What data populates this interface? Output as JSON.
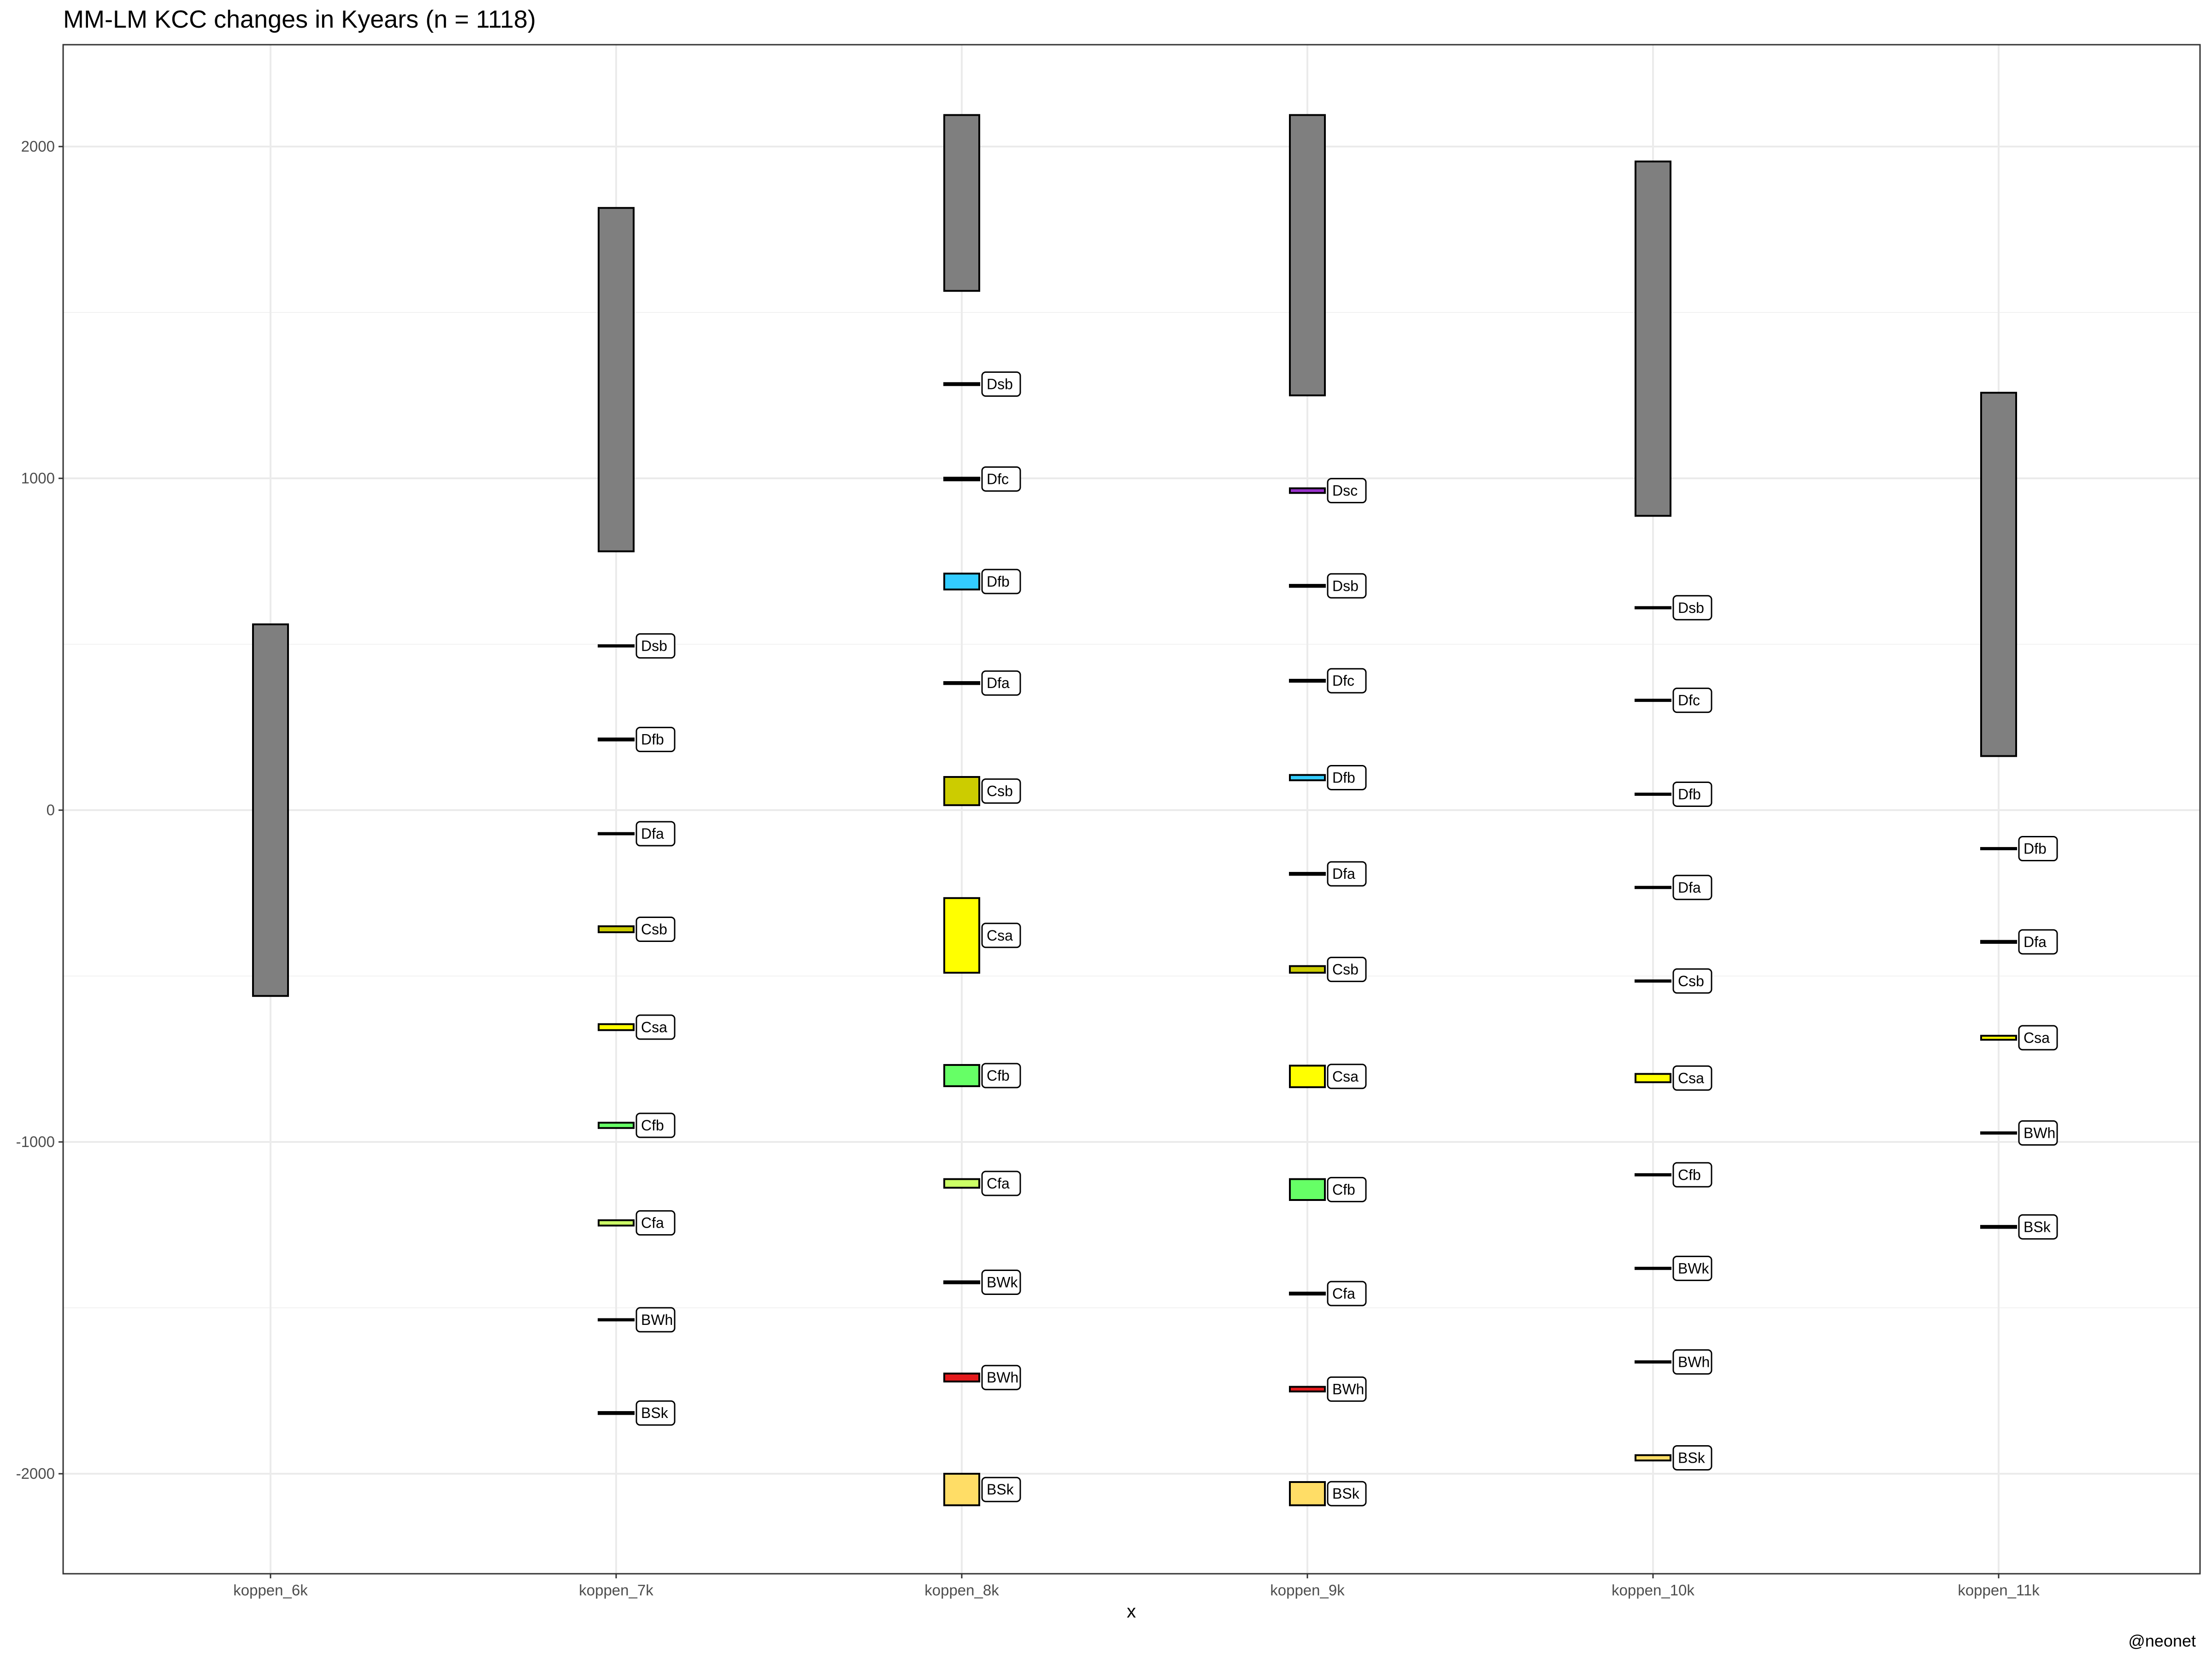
{
  "chart_data": {
    "type": "bar",
    "title": "MM-LM KCC changes in Kyears (n = 1118)",
    "xlabel": "x",
    "ylabel": "",
    "caption": "@neonet",
    "ylim": [
      -2300,
      2300
    ],
    "yticks": [
      -2000,
      -1000,
      0,
      1000,
      2000
    ],
    "grid": true,
    "categories": [
      "koppen_6k",
      "koppen_7k",
      "koppen_8k",
      "koppen_9k",
      "koppen_10k",
      "koppen_11k"
    ],
    "colors": {
      "grey": "#7f7f7f",
      "Dsb": "#000000",
      "Dsc": "#9932cc",
      "Dfc": "#000000",
      "Dfb": "#33ccff",
      "Dfa": "#000000",
      "Csb": "#cccc00",
      "Csa": "#ffff00",
      "Cfb": "#66ff66",
      "Cfa": "#ccff66",
      "BWk": "#000000",
      "BWh": "#e41a1c",
      "BSk": "#ffdd66",
      "line": "#000000"
    },
    "bars": [
      {
        "category": "koppen_6k",
        "label": "",
        "ymin": -560,
        "ymax": 560,
        "fill": "#7f7f7f"
      },
      {
        "category": "koppen_7k",
        "label": "",
        "ymin": 780,
        "ymax": 1815,
        "fill": "#7f7f7f"
      },
      {
        "category": "koppen_7k",
        "label": "Dsb",
        "ymin": 493,
        "ymax": 497,
        "fill": "#000000"
      },
      {
        "category": "koppen_7k",
        "label": "Dfb",
        "ymin": 210,
        "ymax": 216,
        "fill": "#000000"
      },
      {
        "category": "koppen_7k",
        "label": "Dfa",
        "ymin": -73,
        "ymax": -69,
        "fill": "#000000"
      },
      {
        "category": "koppen_7k",
        "label": "Csb",
        "ymin": -368,
        "ymax": -350,
        "fill": "#cccc00"
      },
      {
        "category": "koppen_7k",
        "label": "Csa",
        "ymin": -663,
        "ymax": -645,
        "fill": "#ffff00"
      },
      {
        "category": "koppen_7k",
        "label": "Cfb",
        "ymin": -958,
        "ymax": -942,
        "fill": "#66ff66"
      },
      {
        "category": "koppen_7k",
        "label": "Cfa",
        "ymin": -1252,
        "ymax": -1236,
        "fill": "#ccff66"
      },
      {
        "category": "koppen_7k",
        "label": "BWh",
        "ymin": -1538,
        "ymax": -1534,
        "fill": "#000000"
      },
      {
        "category": "koppen_7k",
        "label": "BSk",
        "ymin": -1820,
        "ymax": -1814,
        "fill": "#000000"
      },
      {
        "category": "koppen_8k",
        "label": "",
        "ymin": 1565,
        "ymax": 2095,
        "fill": "#7f7f7f"
      },
      {
        "category": "koppen_8k",
        "label": "Dsb",
        "ymin": 1281,
        "ymax": 1287,
        "fill": "#000000"
      },
      {
        "category": "koppen_8k",
        "label": "Dfc",
        "ymin": 994,
        "ymax": 1002,
        "fill": "#000000"
      },
      {
        "category": "koppen_8k",
        "label": "Dfb",
        "ymin": 665,
        "ymax": 713,
        "fill": "#33ccff"
      },
      {
        "category": "koppen_8k",
        "label": "Dfa",
        "ymin": 380,
        "ymax": 386,
        "fill": "#000000"
      },
      {
        "category": "koppen_8k",
        "label": "Csb",
        "ymin": 15,
        "ymax": 100,
        "fill": "#cccc00"
      },
      {
        "category": "koppen_8k",
        "label": "Csa",
        "ymin": -490,
        "ymax": -265,
        "fill": "#ffff00"
      },
      {
        "category": "koppen_8k",
        "label": "Cfb",
        "ymin": -832,
        "ymax": -768,
        "fill": "#66ff66"
      },
      {
        "category": "koppen_8k",
        "label": "Cfa",
        "ymin": -1138,
        "ymax": -1112,
        "fill": "#ccff66"
      },
      {
        "category": "koppen_8k",
        "label": "BWk",
        "ymin": -1426,
        "ymax": -1420,
        "fill": "#000000"
      },
      {
        "category": "koppen_8k",
        "label": "BWh",
        "ymin": -1722,
        "ymax": -1698,
        "fill": "#e41a1c"
      },
      {
        "category": "koppen_8k",
        "label": "BSk",
        "ymin": -2095,
        "ymax": -2000,
        "fill": "#ffdd66"
      },
      {
        "category": "koppen_9k",
        "label": "",
        "ymin": 1250,
        "ymax": 2095,
        "fill": "#7f7f7f"
      },
      {
        "category": "koppen_9k",
        "label": "Dsc",
        "ymin": 956,
        "ymax": 970,
        "fill": "#9932cc"
      },
      {
        "category": "koppen_9k",
        "label": "Dsb",
        "ymin": 673,
        "ymax": 679,
        "fill": "#000000"
      },
      {
        "category": "koppen_9k",
        "label": "Dfc",
        "ymin": 387,
        "ymax": 393,
        "fill": "#000000"
      },
      {
        "category": "koppen_9k",
        "label": "Dfb",
        "ymin": 90,
        "ymax": 106,
        "fill": "#33ccff"
      },
      {
        "category": "koppen_9k",
        "label": "Dfa",
        "ymin": -195,
        "ymax": -189,
        "fill": "#000000"
      },
      {
        "category": "koppen_9k",
        "label": "Csb",
        "ymin": -490,
        "ymax": -470,
        "fill": "#cccc00"
      },
      {
        "category": "koppen_9k",
        "label": "Csa",
        "ymin": -835,
        "ymax": -770,
        "fill": "#ffff00"
      },
      {
        "category": "koppen_9k",
        "label": "Cfb",
        "ymin": -1175,
        "ymax": -1112,
        "fill": "#66ff66"
      },
      {
        "category": "koppen_9k",
        "label": "Cfa",
        "ymin": -1460,
        "ymax": -1454,
        "fill": "#000000"
      },
      {
        "category": "koppen_9k",
        "label": "BWh",
        "ymin": -1752,
        "ymax": -1738,
        "fill": "#e41a1c"
      },
      {
        "category": "koppen_9k",
        "label": "BSk",
        "ymin": -2095,
        "ymax": -2025,
        "fill": "#ffdd66"
      },
      {
        "category": "koppen_10k",
        "label": "",
        "ymin": 887,
        "ymax": 1955,
        "fill": "#7f7f7f"
      },
      {
        "category": "koppen_10k",
        "label": "Dsb",
        "ymin": 608,
        "ymax": 612,
        "fill": "#000000"
      },
      {
        "category": "koppen_10k",
        "label": "Dfc",
        "ymin": 329,
        "ymax": 333,
        "fill": "#000000"
      },
      {
        "category": "koppen_10k",
        "label": "Dfb",
        "ymin": 46,
        "ymax": 50,
        "fill": "#000000"
      },
      {
        "category": "koppen_10k",
        "label": "Dfa",
        "ymin": -235,
        "ymax": -231,
        "fill": "#000000"
      },
      {
        "category": "koppen_10k",
        "label": "Csb",
        "ymin": -517,
        "ymax": -513,
        "fill": "#000000"
      },
      {
        "category": "koppen_10k",
        "label": "Csa",
        "ymin": -820,
        "ymax": -795,
        "fill": "#ffff00"
      },
      {
        "category": "koppen_10k",
        "label": "Cfb",
        "ymin": -1101,
        "ymax": -1097,
        "fill": "#000000"
      },
      {
        "category": "koppen_10k",
        "label": "BWk",
        "ymin": -1383,
        "ymax": -1379,
        "fill": "#000000"
      },
      {
        "category": "koppen_10k",
        "label": "BWh",
        "ymin": -1665,
        "ymax": -1661,
        "fill": "#000000"
      },
      {
        "category": "koppen_10k",
        "label": "BSk",
        "ymin": -1960,
        "ymax": -1944,
        "fill": "#ffdd66"
      },
      {
        "category": "koppen_11k",
        "label": "",
        "ymin": 163,
        "ymax": 1258,
        "fill": "#7f7f7f"
      },
      {
        "category": "koppen_11k",
        "label": "Dfb",
        "ymin": -118,
        "ymax": -114,
        "fill": "#000000"
      },
      {
        "category": "koppen_11k",
        "label": "Dfa",
        "ymin": -400,
        "ymax": -394,
        "fill": "#000000"
      },
      {
        "category": "koppen_11k",
        "label": "Csa",
        "ymin": -692,
        "ymax": -680,
        "fill": "#ffff00"
      },
      {
        "category": "koppen_11k",
        "label": "BWh",
        "ymin": -975,
        "ymax": -971,
        "fill": "#000000"
      },
      {
        "category": "koppen_11k",
        "label": "BSk",
        "ymin": -1259,
        "ymax": -1253,
        "fill": "#000000"
      }
    ]
  }
}
